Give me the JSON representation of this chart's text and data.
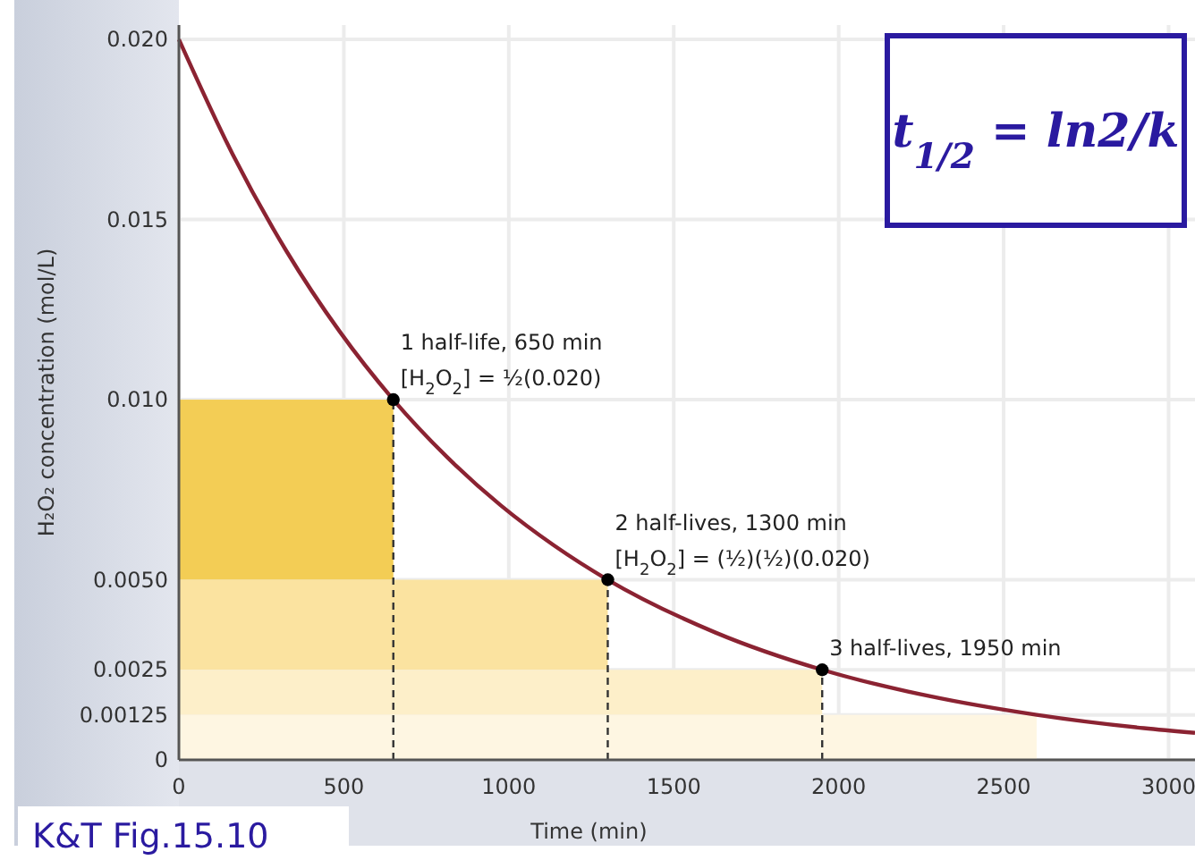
{
  "chart_data": {
    "type": "line",
    "xlabel": "Time (min)",
    "ylabel": "H₂O₂ concentration (mol/L)",
    "xlim": [
      0,
      3080
    ],
    "xticks": [
      0,
      500,
      1000,
      1500,
      2000,
      2500,
      3000
    ],
    "ylim": [
      0,
      0.0204
    ],
    "yticks": [
      0,
      0.00125,
      0.0025,
      {
        "value": 0.005,
        "label": "0.0050"
      },
      {
        "value": 0.01,
        "label": "0.010"
      },
      {
        "value": 0.015,
        "label": "0.015"
      },
      {
        "value": 0.02,
        "label": "0.020"
      }
    ],
    "grid": true,
    "series": [
      {
        "color": "#8b2332",
        "x": [
          0,
          162.5,
          325,
          487.5,
          650,
          812.5,
          975,
          1137.5,
          1300,
          1625,
          1950,
          2275,
          2600,
          2925,
          3080
        ],
        "values": [
          0.02,
          0.01682,
          0.01414,
          0.01189,
          0.01,
          0.00841,
          0.00707,
          0.00595,
          0.005,
          0.00354,
          0.0025,
          0.00177,
          0.00125,
          0.00088,
          0.00075
        ]
      },
      {
        "type": "scatter",
        "color": "#000000",
        "marker": "circle",
        "x": [
          650,
          1300,
          1950
        ],
        "values": [
          0.01,
          0.005,
          0.0025
        ]
      }
    ],
    "bands": [
      {
        "axis": "y",
        "from": 0.005,
        "to": 0.01,
        "color": "#f3cd55"
      },
      {
        "axis": "y",
        "from": 0.0025,
        "to": 0.005,
        "color": "#fbe3a0"
      },
      {
        "axis": "y",
        "from": 0.00125,
        "to": 0.0025,
        "color": "#fdefc9"
      },
      {
        "axis": "y",
        "from": 0,
        "to": 0.00125,
        "color": "#fef6e2"
      }
    ],
    "ref_lines": [
      {
        "axis": "x",
        "value": 650,
        "line_style": "dashed",
        "color": "#333333"
      },
      {
        "axis": "x",
        "value": 1300,
        "line_style": "dashed",
        "color": "#333333"
      },
      {
        "axis": "x",
        "value": 1950,
        "line_style": "dashed",
        "color": "#333333"
      }
    ],
    "annotations": [
      {
        "text": "1 half-life, 650 min\n[H$_{2}$O$_{2}$] = ½(0.020)",
        "x": 650,
        "y": 0.01
      },
      {
        "text": "2 half-lives, 1300 min\n[H$_{2}$O$_{2}$] = (½)(½)(0.020)",
        "x": 1300,
        "y": 0.005
      },
      {
        "text": "3 half-lives, 1950 min",
        "x": 1950,
        "y": 0.0025
      },
      "t$_{1/2}$ = ln2/k",
      "K&T Fig.15.10"
    ]
  }
}
